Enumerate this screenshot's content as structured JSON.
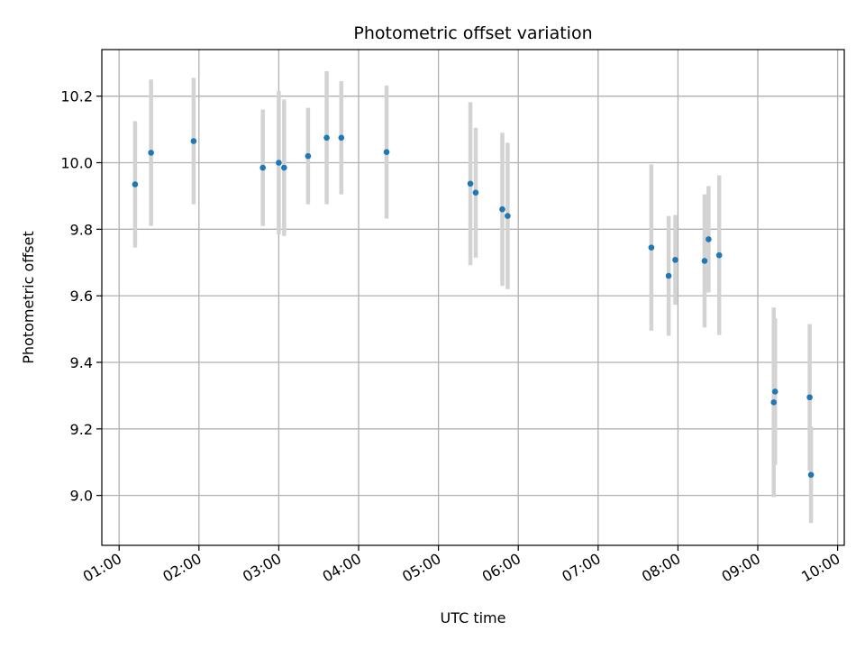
{
  "chart_data": {
    "type": "scatter",
    "title": "Photometric offset variation",
    "xlabel": "UTC time",
    "ylabel": "Photometric offset",
    "x_unit": "UTC hh:mm",
    "xlim": [
      "00:47",
      "10:05"
    ],
    "ylim": [
      8.85,
      10.34
    ],
    "xticks": [
      "01:00",
      "02:00",
      "03:00",
      "04:00",
      "05:00",
      "06:00",
      "07:00",
      "08:00",
      "09:00",
      "10:00"
    ],
    "yticks": [
      9.0,
      9.2,
      9.4,
      9.6,
      9.8,
      10.0,
      10.2
    ],
    "ytick_labels": [
      "9.0",
      "9.2",
      "9.4",
      "9.6",
      "9.8",
      "10.0",
      "10.2"
    ],
    "grid": true,
    "marker_color": "#1f77b4",
    "errorbar_color": "#d3d3d3",
    "points": [
      {
        "x": "01:12",
        "y": 9.935,
        "yerr": 0.19
      },
      {
        "x": "01:24",
        "y": 10.03,
        "yerr": 0.22
      },
      {
        "x": "01:56",
        "y": 10.065,
        "yerr": 0.19
      },
      {
        "x": "02:48",
        "y": 9.985,
        "yerr": 0.175
      },
      {
        "x": "03:00",
        "y": 10.0,
        "yerr": 0.215
      },
      {
        "x": "03:04",
        "y": 9.985,
        "yerr": 0.205
      },
      {
        "x": "03:22",
        "y": 10.02,
        "yerr": 0.145
      },
      {
        "x": "03:36",
        "y": 10.075,
        "yerr": 0.2
      },
      {
        "x": "03:47",
        "y": 10.075,
        "yerr": 0.17
      },
      {
        "x": "04:21",
        "y": 10.032,
        "yerr": 0.2
      },
      {
        "x": "05:24",
        "y": 9.937,
        "yerr": 0.245
      },
      {
        "x": "05:28",
        "y": 9.91,
        "yerr": 0.195
      },
      {
        "x": "05:48",
        "y": 9.86,
        "yerr": 0.23
      },
      {
        "x": "05:52",
        "y": 9.84,
        "yerr": 0.22
      },
      {
        "x": "07:40",
        "y": 9.745,
        "yerr": 0.25
      },
      {
        "x": "07:53",
        "y": 9.66,
        "yerr": 0.18
      },
      {
        "x": "07:58",
        "y": 9.708,
        "yerr": 0.135
      },
      {
        "x": "08:20",
        "y": 9.705,
        "yerr": 0.2
      },
      {
        "x": "08:23",
        "y": 9.77,
        "yerr": 0.16
      },
      {
        "x": "08:31",
        "y": 9.722,
        "yerr": 0.24
      },
      {
        "x": "09:12",
        "y": 9.28,
        "yerr": 0.285
      },
      {
        "x": "09:13",
        "y": 9.312,
        "yerr": 0.22
      },
      {
        "x": "09:39",
        "y": 9.295,
        "yerr": 0.22
      },
      {
        "x": "09:40",
        "y": 9.062,
        "yerr": 0.145
      }
    ]
  }
}
